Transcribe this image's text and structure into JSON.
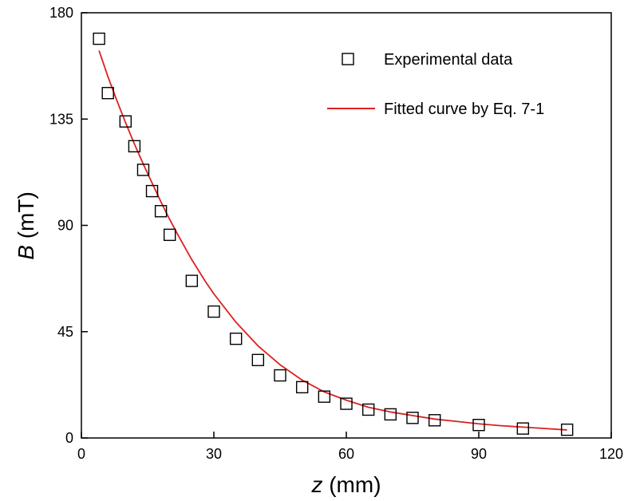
{
  "chart_data": {
    "type": "scatter",
    "xlabel": {
      "var": "z",
      "unit": " (mm)"
    },
    "ylabel": {
      "var": "B",
      "unit": " (mT)"
    },
    "xlim": [
      0,
      120
    ],
    "ylim": [
      0,
      180
    ],
    "x_ticks": [
      "0",
      "30",
      "60",
      "90",
      "120"
    ],
    "y_ticks": [
      "0",
      "45",
      "90",
      "135",
      "180"
    ],
    "x_tick_values": [
      0,
      30,
      60,
      90,
      120
    ],
    "y_tick_values": [
      0,
      45,
      90,
      135,
      180
    ],
    "grid": false,
    "legend_position": "top-right",
    "series": [
      {
        "name": "Experimental data",
        "kind": "scatter",
        "marker": "square-open",
        "color": "#000000",
        "x": [
          4,
          6,
          10,
          12,
          14,
          16,
          18,
          20,
          25,
          30,
          35,
          40,
          45,
          50,
          55,
          60,
          65,
          70,
          75,
          80,
          90,
          100,
          110
        ],
        "y": [
          169,
          146,
          134,
          123.5,
          113.5,
          104.5,
          96,
          86,
          66.5,
          53.5,
          42,
          33,
          26.5,
          21.5,
          17.5,
          14.5,
          12,
          10,
          8.5,
          7.5,
          5.5,
          4,
          3.5
        ]
      },
      {
        "name": "Fitted curve by Eq. 7-1",
        "kind": "line",
        "color": "#dd2020",
        "x": [
          4,
          6,
          8,
          10,
          12,
          14,
          16,
          18,
          20,
          22,
          25,
          28,
          30,
          35,
          40,
          45,
          50,
          55,
          60,
          65,
          70,
          75,
          80,
          85,
          90,
          95,
          100,
          105,
          110
        ],
        "y": [
          164,
          153,
          143,
          133.5,
          124.5,
          116,
          108,
          100,
          92.5,
          85.5,
          75.5,
          66.5,
          61,
          49,
          39,
          31,
          24.5,
          19.5,
          16,
          13,
          11,
          9.5,
          8,
          7,
          6,
          5.2,
          4.6,
          4,
          3.4
        ]
      }
    ]
  }
}
